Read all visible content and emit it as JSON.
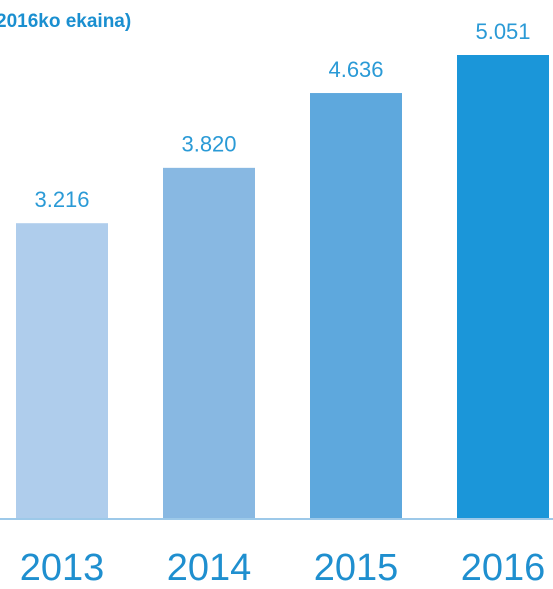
{
  "chart_data": {
    "type": "bar",
    "title": "2016ko ekaina)",
    "categories": [
      "2013",
      "2014",
      "2015",
      "2016"
    ],
    "values": [
      3216,
      3820,
      4636,
      5051
    ],
    "value_labels": [
      "3.216",
      "3.820",
      "4.636",
      "5.051"
    ],
    "colors": [
      "#afcdec",
      "#88b8e2",
      "#5ea8dd",
      "#1b96d9"
    ]
  }
}
